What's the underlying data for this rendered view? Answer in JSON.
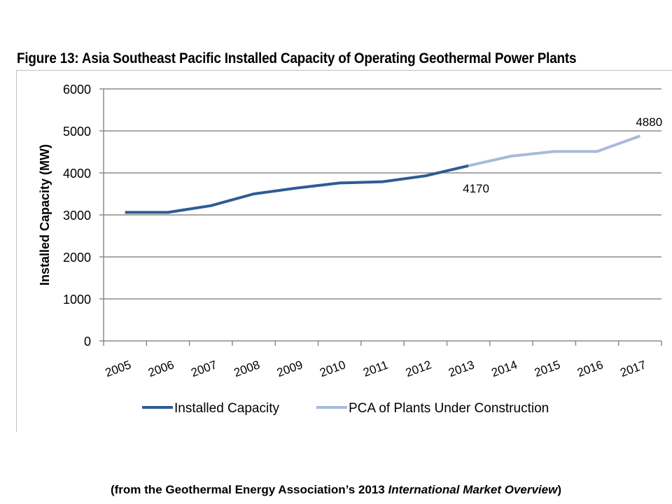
{
  "chart_data": {
    "type": "line",
    "title": "Figure 13: Asia Southeast Pacific Installed Capacity of Operating Geothermal Power Plants",
    "xlabel": "",
    "ylabel": "Installed Capacity (MW)",
    "ylim": [
      0,
      6000
    ],
    "yticks": [
      0,
      1000,
      2000,
      3000,
      4000,
      5000,
      6000
    ],
    "grid": true,
    "legend": "bottom",
    "categories": [
      "2005",
      "2006",
      "2007",
      "2008",
      "2009",
      "2010",
      "2011",
      "2012",
      "2013",
      "2014",
      "2015",
      "2016",
      "2017"
    ],
    "series": [
      {
        "name": "Installed Capacity",
        "color": "#2E5C94",
        "values": [
          3060,
          3060,
          3220,
          3500,
          3640,
          3760,
          3790,
          3930,
          4170,
          null,
          null,
          null,
          null
        ]
      },
      {
        "name": "PCA of Plants Under Construction",
        "color": "#A7BBDB",
        "values": [
          null,
          null,
          null,
          null,
          null,
          null,
          null,
          null,
          4170,
          4400,
          4510,
          4510,
          4880
        ]
      }
    ],
    "annotations": [
      {
        "category": "2013",
        "value": 4170,
        "text": "4170"
      },
      {
        "category": "2017",
        "value": 4880,
        "text": "4880"
      }
    ]
  },
  "caption": {
    "prefix": "(from the Geothermal Energy Association’s 2013 ",
    "italic": "International Market Overview",
    "suffix": ")"
  }
}
